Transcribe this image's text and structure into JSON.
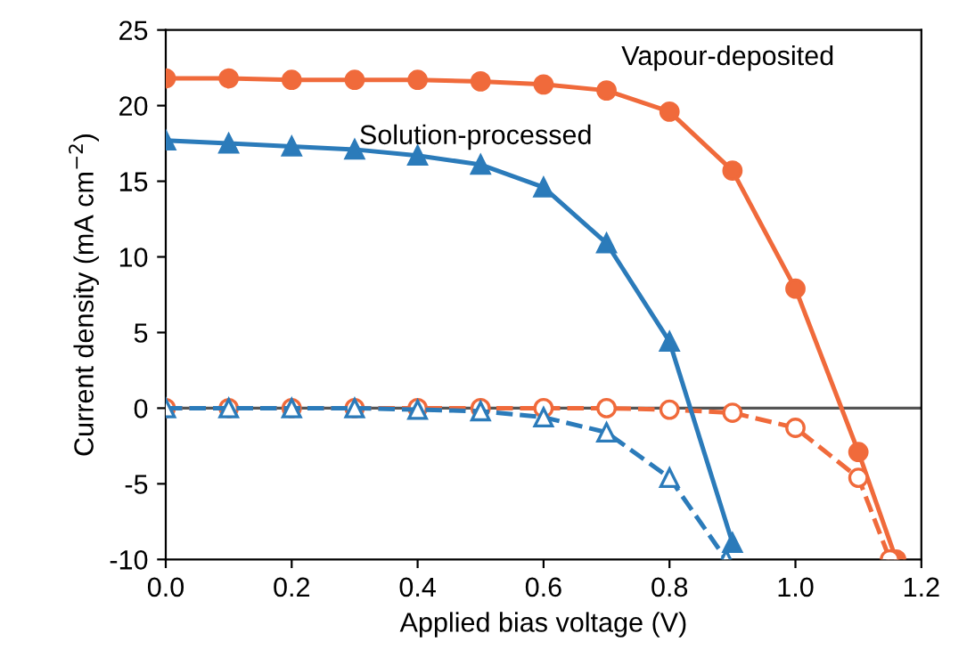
{
  "chart_data": {
    "type": "line",
    "xlabel": "Applied bias voltage (V)",
    "ylabel": "Current density (mA cm$^{−2}$)",
    "xlim": [
      0,
      1.2
    ],
    "ylim": [
      -10,
      25
    ],
    "xticks": [
      {
        "value": 0,
        "label": "0.0"
      },
      0.2,
      0.4,
      0.6,
      0.8,
      {
        "value": 1,
        "label": "1.0"
      },
      1.2
    ],
    "yticks": [
      -10,
      -5,
      0,
      5,
      10,
      15,
      20,
      25
    ],
    "grid": false,
    "legend": false,
    "ref_lines": [
      {
        "axis": "y",
        "value": 0,
        "color": "#555555",
        "line_style": "solid"
      }
    ],
    "series": [
      {
        "name": "Vapour-deposited",
        "color": "#f06a3b",
        "marker": "circle",
        "line_style": "solid",
        "x": [
          0,
          0.1,
          0.2,
          0.3,
          0.4,
          0.5,
          0.6,
          0.7,
          0.8,
          0.9,
          1.0,
          1.1,
          1.16
        ],
        "values": [
          21.8,
          21.8,
          21.7,
          21.7,
          21.7,
          21.6,
          21.4,
          21.0,
          19.6,
          15.7,
          7.9,
          -2.9,
          -10
        ]
      },
      {
        "color": "#f06a3b",
        "marker": "circle",
        "line_style": "dashed",
        "x": [
          0,
          0.1,
          0.2,
          0.3,
          0.4,
          0.5,
          0.6,
          0.7,
          0.8,
          0.9,
          1.0,
          1.1,
          1.15
        ],
        "values": [
          0,
          0,
          0,
          0,
          0,
          0,
          0,
          0,
          -0.1,
          -0.3,
          -1.3,
          -4.6,
          -10
        ]
      },
      {
        "name": "Solution-processed",
        "color": "#2b7bba",
        "marker": "triangle",
        "line_style": "solid",
        "x": [
          0,
          0.1,
          0.2,
          0.3,
          0.4,
          0.5,
          0.6,
          0.7,
          0.8,
          0.9
        ],
        "values": [
          17.7,
          17.5,
          17.3,
          17.1,
          16.7,
          16.1,
          14.6,
          10.9,
          4.4,
          -8.9
        ]
      },
      {
        "color": "#2b7bba",
        "marker": "triangle",
        "line_style": "dashed",
        "x": [
          0,
          0.1,
          0.2,
          0.3,
          0.4,
          0.5,
          0.6,
          0.7,
          0.8,
          0.89
        ],
        "values": [
          0,
          0,
          0,
          0,
          -0.1,
          -0.2,
          -0.6,
          -1.6,
          -4.6,
          -10
        ]
      }
    ]
  }
}
